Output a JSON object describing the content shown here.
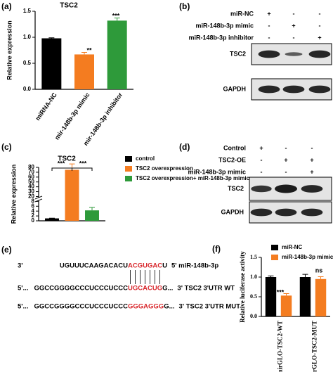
{
  "chart_data": [
    {
      "type": "bar",
      "panel": "(a)",
      "title": "TSC2",
      "y_label": "Relative expression",
      "categories": [
        "miRNA-NC",
        "mir-148b-3p mimic",
        "mir-148b-3p inhibitor"
      ],
      "values": [
        0.98,
        0.67,
        1.32
      ],
      "errors": [
        0.01,
        0.04,
        0.05
      ],
      "colors": [
        "#000000",
        "#f47c20",
        "#2e9a3a"
      ],
      "ylim": [
        0,
        1.5
      ],
      "yticks": [
        {
          "value": 0,
          "label": "0.0"
        },
        {
          "value": 0.5,
          "label": "0.5"
        },
        {
          "value": 1,
          "label": "1.0"
        },
        {
          "value": 1.5,
          "label": "1.5"
        }
      ],
      "annotations": [
        "**",
        "***"
      ]
    },
    {
      "type": "bar",
      "panel": "(c)",
      "title": "TSC2",
      "y_label": "Relative expression",
      "broken_axis": true,
      "series": [
        {
          "name": "control",
          "color": "#000000",
          "values": [
            1.0
          ],
          "errors": [
            0.1
          ]
        },
        {
          "name": "TSC2 overexpression",
          "color": "#f47c20",
          "values": [
            75
          ],
          "errors": [
            12
          ]
        },
        {
          "name": "TSC2 overexpression+ miR-148b-3p mimic",
          "color": "#2e9a3a",
          "values": [
            4.3
          ],
          "errors": [
            1.2
          ]
        }
      ],
      "ylim": [
        0,
        80
      ],
      "yticks": [
        0,
        2,
        4,
        6,
        8,
        20,
        30,
        40,
        50,
        60,
        70,
        80
      ],
      "annotations": [
        "***",
        "***"
      ]
    },
    {
      "type": "bar",
      "panel": "(f)",
      "y_label": "Relative luciferase activity",
      "categories": [
        "pmirGLO-TSC2-WT",
        "pmirGLO-TSC2-MUT"
      ],
      "series": [
        {
          "name": "miR-NC",
          "color": "#000000",
          "values": [
            1.0,
            1.0
          ],
          "errors": [
            0.03,
            0.07
          ]
        },
        {
          "name": "miR-148b-3p mimic",
          "color": "#f47c20",
          "values": [
            0.53,
            0.95
          ],
          "errors": [
            0.05,
            0.06
          ]
        }
      ],
      "ylim": [
        0,
        1.5
      ],
      "yticks": [
        {
          "value": 0,
          "label": "0.0"
        },
        {
          "value": 0.5,
          "label": "0.5"
        },
        {
          "value": 1,
          "label": "1.0"
        },
        {
          "value": 1.5,
          "label": "1.5"
        }
      ],
      "annotations": [
        "***",
        "ns"
      ]
    }
  ],
  "blots": [
    {
      "panel": "(b)",
      "conditions": [
        {
          "name": "miR-NC",
          "signs": [
            "+",
            "-",
            "-"
          ]
        },
        {
          "name": "miR-148b-3p mimic",
          "signs": [
            "-",
            "+",
            "-"
          ]
        },
        {
          "name": "miR-148b-3p inhibitor",
          "signs": [
            "-",
            "-",
            "+"
          ]
        }
      ],
      "bands": [
        "TSC2",
        "GAPDH"
      ]
    },
    {
      "panel": "(d)",
      "conditions": [
        {
          "name": "Control",
          "signs": [
            "+",
            "-",
            "-"
          ]
        },
        {
          "name": "TSC2-OE",
          "signs": [
            "-",
            "+",
            "+"
          ]
        },
        {
          "name": "miR-148b-3p mimic",
          "signs": [
            "-",
            "-",
            "+"
          ]
        }
      ],
      "bands": [
        "TSC2",
        "GAPDH"
      ]
    }
  ],
  "sequences": {
    "panel": "(e)",
    "rows": [
      {
        "left": "3'",
        "parts": [
          "UGUUUCAAGACACU",
          "ACGUGAC",
          "U"
        ],
        "right": "5'  miR-148b-3p"
      },
      {
        "left": "5'...",
        "parts": [
          "GGCCGGGGCCCUCCCUCCC",
          "UGCACUG",
          "G..."
        ],
        "right": "3'  TSC2 3'UTR WT"
      },
      {
        "left": "5'...",
        "parts": [
          "GGCCGGGGCCCUCCCUCCC",
          "GGGAGGG",
          "G..."
        ],
        "right": "3'  TSC2 3'UTR MUT"
      }
    ]
  }
}
